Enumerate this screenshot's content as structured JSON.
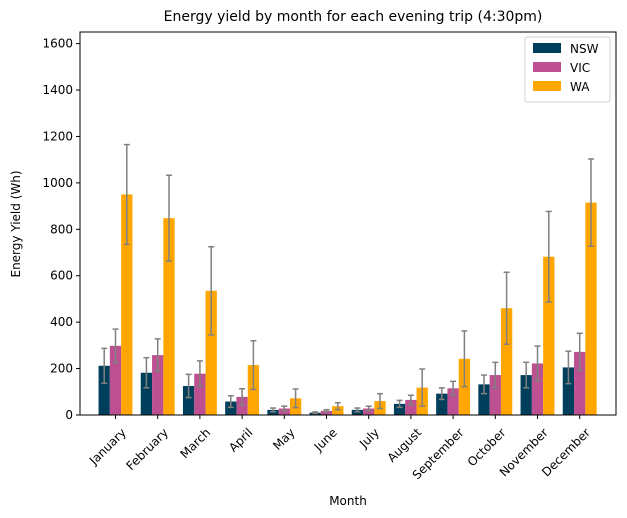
{
  "chart_data": {
    "type": "bar",
    "title": "Energy yield by month for each evening trip (4:30pm)",
    "xlabel": "Month",
    "ylabel": "Energy Yield (Wh)",
    "ylim": [
      0,
      1650
    ],
    "yticks": [
      0,
      200,
      400,
      600,
      800,
      1000,
      1200,
      1400,
      1600
    ],
    "legend_position": "top-right",
    "error_bar_color": "#808080",
    "categories": [
      "January",
      "February",
      "March",
      "April",
      "May",
      "June",
      "July",
      "August",
      "September",
      "October",
      "November",
      "December"
    ],
    "series": [
      {
        "name": "NSW",
        "color": "#003f5c",
        "values": [
          212,
          182,
          125,
          58,
          22,
          10,
          22,
          48,
          92,
          132,
          172,
          205
        ],
        "errors": [
          75,
          65,
          50,
          25,
          8,
          3,
          8,
          15,
          25,
          40,
          55,
          70
        ]
      },
      {
        "name": "VIC",
        "color": "#bc5090",
        "values": [
          298,
          258,
          178,
          78,
          28,
          18,
          28,
          65,
          115,
          172,
          222,
          272
        ],
        "errors": [
          72,
          70,
          55,
          35,
          10,
          5,
          10,
          20,
          30,
          55,
          75,
          80
        ]
      },
      {
        "name": "WA",
        "color": "#ffa600",
        "values": [
          950,
          848,
          535,
          215,
          72,
          38,
          60,
          118,
          242,
          460,
          682,
          915
        ],
        "errors": [
          215,
          185,
          190,
          105,
          40,
          15,
          32,
          80,
          120,
          155,
          195,
          188
        ]
      }
    ]
  }
}
